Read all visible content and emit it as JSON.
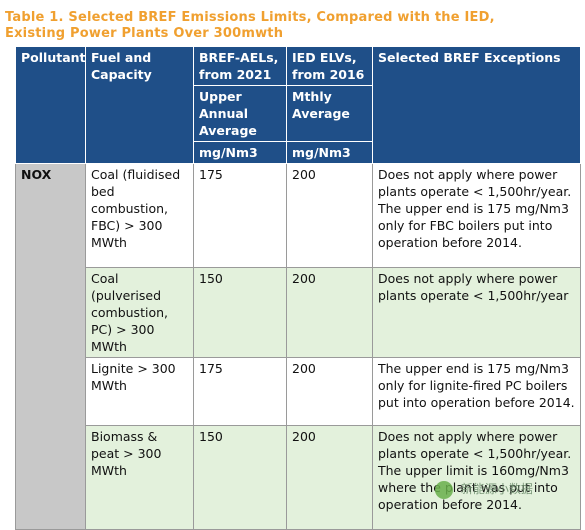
{
  "title_line1": "Table 1. Selected BREF Emissions Limits, Compared with the IED,",
  "title_line2": "Existing Power Plants Over 300mwth",
  "headers": {
    "pollutant": "Pollutant",
    "fuel": "Fuel and Capacity",
    "bref": "BREF-AELs, from 2021",
    "bref_sub": "Upper Annual Average",
    "bref_unit": "mg/Nm3",
    "ied": "IED ELVs, from 2016",
    "ied_sub": "Mthly Average",
    "ied_unit": "mg/Nm3",
    "exceptions": "Selected BREF Exceptions"
  },
  "pollutant": "NOX",
  "rows": [
    {
      "fuel": "Coal (fluidised bed combustion, FBC) > 300 MWth",
      "bref": "175",
      "ied": "200",
      "exception": "Does not apply where power plants operate < 1,500hr/year. The upper end is 175 mg/Nm3 only for FBC boilers put into operation before 2014."
    },
    {
      "fuel": "Coal (pulverised combustion, PC) > 300 MWth",
      "bref": "150",
      "ied": "200",
      "exception": "Does not apply where power plants operate < 1,500hr/year"
    },
    {
      "fuel": "Lignite > 300 MWth",
      "bref": "175",
      "ied": "200",
      "exception": "The upper end is 175 mg/Nm3 only for lignite-fired PC boilers put into operation before 2014."
    },
    {
      "fuel": "Biomass & peat > 300 MWth",
      "bref": "150",
      "ied": "200",
      "exception": "Does not apply where power plants operate < 1,500hr/year. The upper limit is 160mg/Nm3 where the plant was put into operation before 2014."
    }
  ],
  "watermark": "新能源小数据",
  "colors": {
    "title": "#f0a030",
    "header": "#1f4f88",
    "green_row": "#e3f1dc",
    "pollutant_cell": "#c8c8c8"
  }
}
